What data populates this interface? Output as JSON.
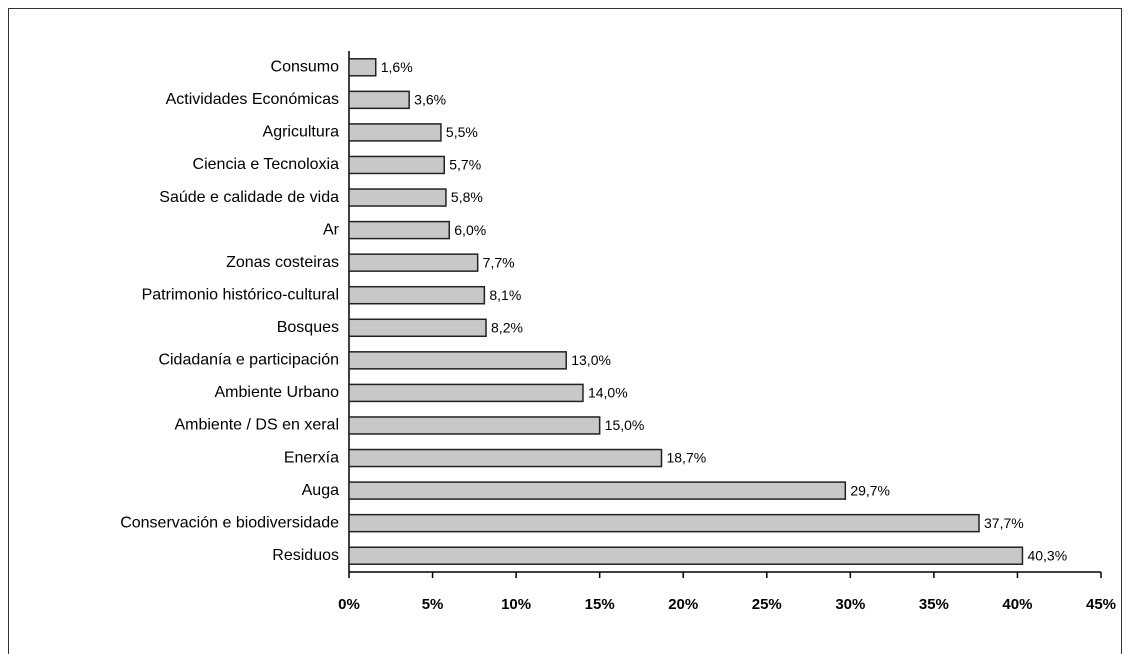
{
  "chart_data": {
    "type": "bar",
    "orientation": "horizontal",
    "categories": [
      "Consumo",
      "Actividades Económicas",
      "Agricultura",
      "Ciencia e Tecnoloxia",
      "Saúde e calidade de vida",
      "Ar",
      "Zonas costeiras",
      "Patrimonio histórico-cultural",
      "Bosques",
      "Cidadanía e participación",
      "Ambiente Urbano",
      "Ambiente / DS en xeral",
      "Enerxía",
      "Auga",
      "Conservación e biodiversidade",
      "Residuos"
    ],
    "values": [
      1.6,
      3.6,
      5.5,
      5.7,
      5.8,
      6.0,
      7.7,
      8.1,
      8.2,
      13.0,
      14.0,
      15.0,
      18.7,
      29.7,
      37.7,
      40.3
    ],
    "value_labels": [
      "1,6%",
      "3,6%",
      "5,5%",
      "5,7%",
      "5,8%",
      "6,0%",
      "7,7%",
      "8,1%",
      "8,2%",
      "13,0%",
      "14,0%",
      "15,0%",
      "18,7%",
      "29,7%",
      "37,7%",
      "40,3%"
    ],
    "color": "#c8c8c8",
    "xlim": [
      0,
      45
    ],
    "xticks": [
      {
        "value": 0,
        "label": "0%"
      },
      {
        "value": 5,
        "label": "5%"
      },
      {
        "value": 10,
        "label": "10%"
      },
      {
        "value": 15,
        "label": "15%"
      },
      {
        "value": 20,
        "label": "20%"
      },
      {
        "value": 25,
        "label": "25%"
      },
      {
        "value": 30,
        "label": "30%"
      },
      {
        "value": 35,
        "label": "35%"
      },
      {
        "value": 40,
        "label": "40%"
      },
      {
        "value": 45,
        "label": "45%"
      }
    ],
    "grid": false
  }
}
